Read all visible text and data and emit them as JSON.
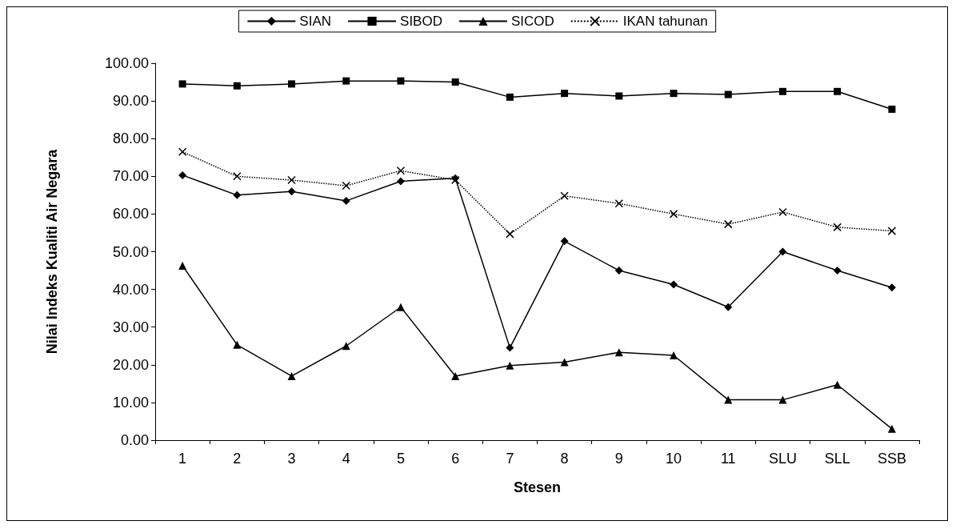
{
  "chart_data": {
    "type": "line",
    "xlabel": "Stesen",
    "ylabel": "Nilai Indeks Kualiti Air Negara",
    "categories": [
      "1",
      "2",
      "3",
      "4",
      "5",
      "6",
      "7",
      "8",
      "9",
      "10",
      "11",
      "SLU",
      "SLL",
      "SSB"
    ],
    "series": [
      {
        "name": "SIAN",
        "color": "#000000",
        "marker": "diamond",
        "line_style": "solid",
        "values": [
          70.3,
          65,
          66,
          63.5,
          68.7,
          69.5,
          24.5,
          52.8,
          45,
          41.3,
          35.3,
          50,
          45,
          40.5
        ]
      },
      {
        "name": "SIBOD",
        "color": "#000000",
        "marker": "square",
        "line_style": "solid",
        "values": [
          94.5,
          94,
          94.5,
          95.3,
          95.3,
          95,
          91,
          92,
          91.3,
          92,
          91.7,
          92.5,
          92.5,
          87.8
        ]
      },
      {
        "name": "SICOD",
        "color": "#000000",
        "marker": "triangle",
        "line_style": "solid",
        "values": [
          46.3,
          25.3,
          17,
          25,
          35.3,
          17,
          19.8,
          20.7,
          23.3,
          22.5,
          10.7,
          10.7,
          14.7,
          3
        ]
      },
      {
        "name": "IKAN tahunan",
        "color": "#000000",
        "marker": "cross",
        "line_style": "dotted",
        "values": [
          76.5,
          70,
          69,
          67.5,
          71.5,
          69,
          54.7,
          64.8,
          62.8,
          60,
          57.3,
          60.5,
          56.5,
          55.5
        ]
      }
    ],
    "ylim": [
      0,
      100
    ],
    "yticks": [
      {
        "value": 0,
        "label": "0.00"
      },
      {
        "value": 10,
        "label": "10.00"
      },
      {
        "value": 20,
        "label": "20.00"
      },
      {
        "value": 30,
        "label": "30.00"
      },
      {
        "value": 40,
        "label": "40.00"
      },
      {
        "value": 50,
        "label": "50.00"
      },
      {
        "value": 60,
        "label": "60.00"
      },
      {
        "value": 70,
        "label": "70.00"
      },
      {
        "value": 80,
        "label": "80.00"
      },
      {
        "value": 90,
        "label": "90.00"
      },
      {
        "value": 100,
        "label": "100.00"
      }
    ],
    "grid": false,
    "legend": "top"
  }
}
